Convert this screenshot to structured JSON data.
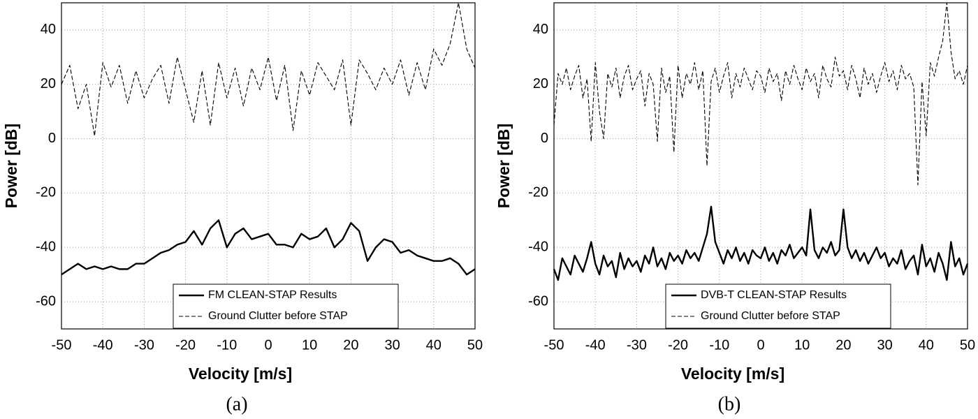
{
  "chart_data": [
    {
      "type": "line",
      "caption": "(a)",
      "xlabel": "Velocity [m/s]",
      "ylabel": "Power [dB]",
      "xlim": [
        -50,
        50
      ],
      "ylim": [
        -70,
        50
      ],
      "xticks": [
        -50,
        -40,
        -30,
        -20,
        -10,
        0,
        10,
        20,
        30,
        40,
        50
      ],
      "yticks": [
        -60,
        -40,
        -20,
        0,
        20,
        40
      ],
      "grid": true,
      "legend": "lower center",
      "x": [
        -50,
        -48,
        -46,
        -44,
        -42,
        -40,
        -38,
        -36,
        -34,
        -32,
        -30,
        -28,
        -26,
        -24,
        -22,
        -20,
        -18,
        -16,
        -14,
        -12,
        -10,
        -8,
        -6,
        -4,
        -2,
        0,
        2,
        4,
        6,
        8,
        10,
        12,
        14,
        16,
        18,
        20,
        22,
        24,
        26,
        28,
        30,
        32,
        34,
        36,
        38,
        40,
        42,
        44,
        46,
        48,
        50
      ],
      "series": [
        {
          "name": "FM CLEAN-STAP Results",
          "color": "#000000",
          "line_style": "solid",
          "values": [
            -50,
            -48,
            -46,
            -48,
            -47,
            -48,
            -47,
            -48,
            -48,
            -46,
            -46,
            -44,
            -42,
            -41,
            -39,
            -38,
            -34,
            -39,
            -33,
            -30,
            -40,
            -35,
            -33,
            -37,
            -36,
            -35,
            -39,
            -39,
            -40,
            -35,
            -37,
            -36,
            -33,
            -40,
            -37,
            -31,
            -34,
            -45,
            -40,
            -37,
            -38,
            -42,
            -41,
            -43,
            -44,
            -45,
            -45,
            -44,
            -46,
            -50,
            -48
          ]
        },
        {
          "name": "Ground Clutter before STAP",
          "color": "#000000",
          "line_style": "dashed",
          "values": [
            20,
            27,
            11,
            20,
            1,
            28,
            19,
            27,
            13,
            25,
            15,
            22,
            27,
            13,
            30,
            18,
            6,
            25,
            5,
            28,
            15,
            26,
            12,
            26,
            18,
            30,
            14,
            27,
            3,
            25,
            16,
            28,
            23,
            18,
            29,
            5,
            29,
            24,
            18,
            26,
            20,
            29,
            16,
            28,
            18,
            33,
            27,
            35,
            50,
            33,
            26
          ]
        }
      ]
    },
    {
      "type": "line",
      "caption": "(b)",
      "xlabel": "Velocity [m/s]",
      "ylabel": "Power [dB]",
      "xlim": [
        -50,
        50
      ],
      "ylim": [
        -70,
        50
      ],
      "xticks": [
        -50,
        -40,
        -30,
        -20,
        -10,
        0,
        10,
        20,
        30,
        40,
        50
      ],
      "yticks": [
        -60,
        -40,
        -20,
        0,
        20,
        40
      ],
      "grid": true,
      "legend": "lower center",
      "x": [
        -50,
        -49,
        -48,
        -47,
        -46,
        -45,
        -44,
        -43,
        -42,
        -41,
        -40,
        -39,
        -38,
        -37,
        -36,
        -35,
        -34,
        -33,
        -32,
        -31,
        -30,
        -29,
        -28,
        -27,
        -26,
        -25,
        -24,
        -23,
        -22,
        -21,
        -20,
        -19,
        -18,
        -17,
        -16,
        -15,
        -14,
        -13,
        -12,
        -11,
        -10,
        -9,
        -8,
        -7,
        -6,
        -5,
        -4,
        -3,
        -2,
        -1,
        0,
        1,
        2,
        3,
        4,
        5,
        6,
        7,
        8,
        9,
        10,
        11,
        12,
        13,
        14,
        15,
        16,
        17,
        18,
        19,
        20,
        21,
        22,
        23,
        24,
        25,
        26,
        27,
        28,
        29,
        30,
        31,
        32,
        33,
        34,
        35,
        36,
        37,
        38,
        39,
        40,
        41,
        42,
        43,
        44,
        45,
        46,
        47,
        48,
        49,
        50
      ],
      "series": [
        {
          "name": "DVB-T CLEAN-STAP Results",
          "color": "#000000",
          "line_style": "solid",
          "values": [
            -48,
            -52,
            -44,
            -47,
            -50,
            -43,
            -46,
            -49,
            -44,
            -38,
            -46,
            -50,
            -43,
            -47,
            -45,
            -51,
            -42,
            -48,
            -44,
            -47,
            -45,
            -49,
            -43,
            -46,
            -40,
            -47,
            -44,
            -48,
            -42,
            -45,
            -43,
            -46,
            -41,
            -44,
            -42,
            -45,
            -40,
            -35,
            -25,
            -38,
            -42,
            -46,
            -41,
            -44,
            -40,
            -45,
            -42,
            -46,
            -41,
            -43,
            -44,
            -40,
            -45,
            -42,
            -46,
            -41,
            -43,
            -39,
            -44,
            -42,
            -40,
            -43,
            -26,
            -41,
            -44,
            -40,
            -42,
            -38,
            -43,
            -41,
            -26,
            -40,
            -44,
            -41,
            -45,
            -42,
            -46,
            -43,
            -40,
            -44,
            -42,
            -47,
            -44,
            -46,
            -41,
            -48,
            -45,
            -43,
            -50,
            -39,
            -47,
            -44,
            -49,
            -42,
            -46,
            -52,
            -38,
            -47,
            -44,
            -50,
            -46
          ]
        },
        {
          "name": "Ground Clutter before STAP",
          "color": "#000000",
          "line_style": "dashed",
          "values": [
            5,
            24,
            20,
            26,
            18,
            23,
            27,
            15,
            22,
            -1,
            28,
            10,
            0,
            24,
            19,
            26,
            15,
            23,
            27,
            18,
            22,
            25,
            12,
            24,
            20,
            -1,
            26,
            17,
            23,
            -5,
            27,
            15,
            24,
            20,
            28,
            18,
            25,
            -10,
            21,
            26,
            17,
            23,
            28,
            15,
            24,
            19,
            26,
            22,
            18,
            25,
            23,
            17,
            26,
            21,
            24,
            14,
            25,
            20,
            27,
            22,
            18,
            26,
            21,
            24,
            15,
            27,
            22,
            19,
            30,
            23,
            25,
            18,
            27,
            22,
            15,
            26,
            20,
            24,
            17,
            23,
            28,
            21,
            25,
            18,
            27,
            22,
            24,
            19,
            -17,
            21,
            1,
            28,
            23,
            30,
            36,
            50,
            32,
            22,
            25,
            20,
            27
          ]
        }
      ]
    }
  ]
}
